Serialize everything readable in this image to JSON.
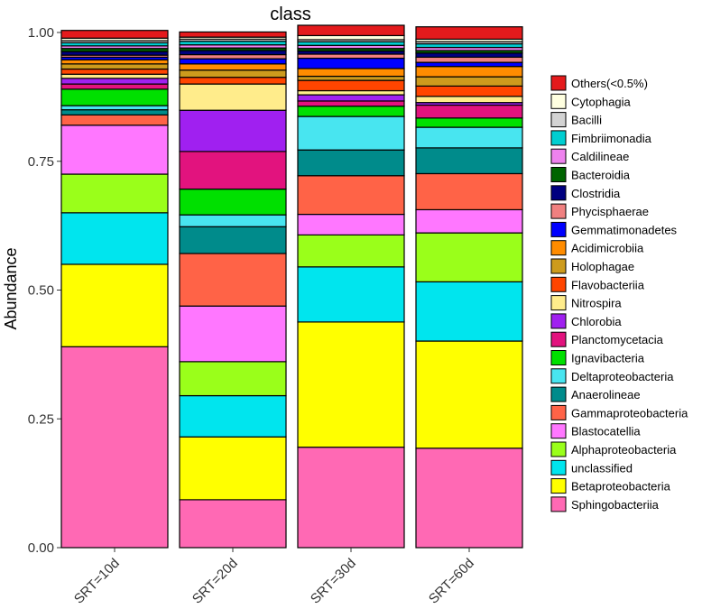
{
  "chart_data": {
    "type": "bar",
    "stacked": true,
    "title": "class",
    "xlabel": "",
    "ylabel": "Abundance",
    "ylim": [
      0,
      1
    ],
    "yticks": [
      "0.00",
      "0.25",
      "0.50",
      "0.75",
      "1.00"
    ],
    "ytick_values": [
      0,
      0.25,
      0.5,
      0.75,
      1.0
    ],
    "categories": [
      "SRT=10d",
      "SRT=20d",
      "SRT=30d",
      "SRT=60d"
    ],
    "grid": false,
    "legend_position": "right",
    "series": [
      {
        "name": "Sphingobacteriia",
        "color": "#FF69B4",
        "values": [
          0.39,
          0.093,
          0.195,
          0.193
        ]
      },
      {
        "name": "Betaproteobacteria",
        "color": "#FFFF00",
        "values": [
          0.16,
          0.122,
          0.243,
          0.208
        ]
      },
      {
        "name": "unclassified",
        "color": "#00E5EE",
        "values": [
          0.1,
          0.08,
          0.107,
          0.115
        ]
      },
      {
        "name": "Alphaproteobacteria",
        "color": "#9AFF1A",
        "values": [
          0.075,
          0.066,
          0.062,
          0.095
        ]
      },
      {
        "name": "Blastocatellia",
        "color": "#FF77FF",
        "values": [
          0.095,
          0.108,
          0.04,
          0.045
        ]
      },
      {
        "name": "Gammaproteobacteria",
        "color": "#FF6347",
        "values": [
          0.02,
          0.102,
          0.075,
          0.07
        ]
      },
      {
        "name": "Anaerolineae",
        "color": "#008B8B",
        "values": [
          0.01,
          0.052,
          0.05,
          0.05
        ]
      },
      {
        "name": "Deltaproteobacteria",
        "color": "#48E5F0",
        "values": [
          0.008,
          0.023,
          0.065,
          0.04
        ]
      },
      {
        "name": "Ignavibacteria",
        "color": "#00E000",
        "values": [
          0.032,
          0.05,
          0.02,
          0.018
        ]
      },
      {
        "name": "Planctomycetacia",
        "color": "#E2137E",
        "values": [
          0.01,
          0.073,
          0.01,
          0.025
        ]
      },
      {
        "name": "Chlorobia",
        "color": "#A020F0",
        "values": [
          0.011,
          0.08,
          0.012,
          0.005
        ]
      },
      {
        "name": "Nitrospira",
        "color": "#FFEC8B",
        "values": [
          0.008,
          0.051,
          0.008,
          0.012
        ]
      },
      {
        "name": "Flavobacteriia",
        "color": "#FF4500",
        "values": [
          0.01,
          0.013,
          0.02,
          0.02
        ]
      },
      {
        "name": "Holophagae",
        "color": "#CD9B1D",
        "values": [
          0.01,
          0.014,
          0.008,
          0.018
        ]
      },
      {
        "name": "Acidimicrobiia",
        "color": "#FF8C00",
        "values": [
          0.008,
          0.012,
          0.015,
          0.02
        ]
      },
      {
        "name": "Gemmatimonadetes",
        "color": "#0000FF",
        "values": [
          0.005,
          0.01,
          0.02,
          0.008
        ]
      },
      {
        "name": "Phycisphaerae",
        "color": "#F08080",
        "values": [
          0.004,
          0.008,
          0.008,
          0.01
        ]
      },
      {
        "name": "Clostridia",
        "color": "#000080",
        "values": [
          0.007,
          0.008,
          0.006,
          0.008
        ]
      },
      {
        "name": "Bacteroidia",
        "color": "#006400",
        "values": [
          0.006,
          0.005,
          0.005,
          0.005
        ]
      },
      {
        "name": "Caldilineae",
        "color": "#EE82EE",
        "values": [
          0.005,
          0.006,
          0.006,
          0.006
        ]
      },
      {
        "name": "Fimbriimonadia",
        "color": "#00CED1",
        "values": [
          0.006,
          0.007,
          0.007,
          0.007
        ]
      },
      {
        "name": "Bacilli",
        "color": "#D3D3D3",
        "values": [
          0.004,
          0.004,
          0.004,
          0.004
        ]
      },
      {
        "name": "Cytophagia",
        "color": "#FFFFE0",
        "values": [
          0.005,
          0.004,
          0.008,
          0.005
        ]
      },
      {
        "name": "Others(<0.5%)",
        "color": "#E41A1C",
        "values": [
          0.015,
          0.01,
          0.02,
          0.024
        ]
      }
    ]
  }
}
